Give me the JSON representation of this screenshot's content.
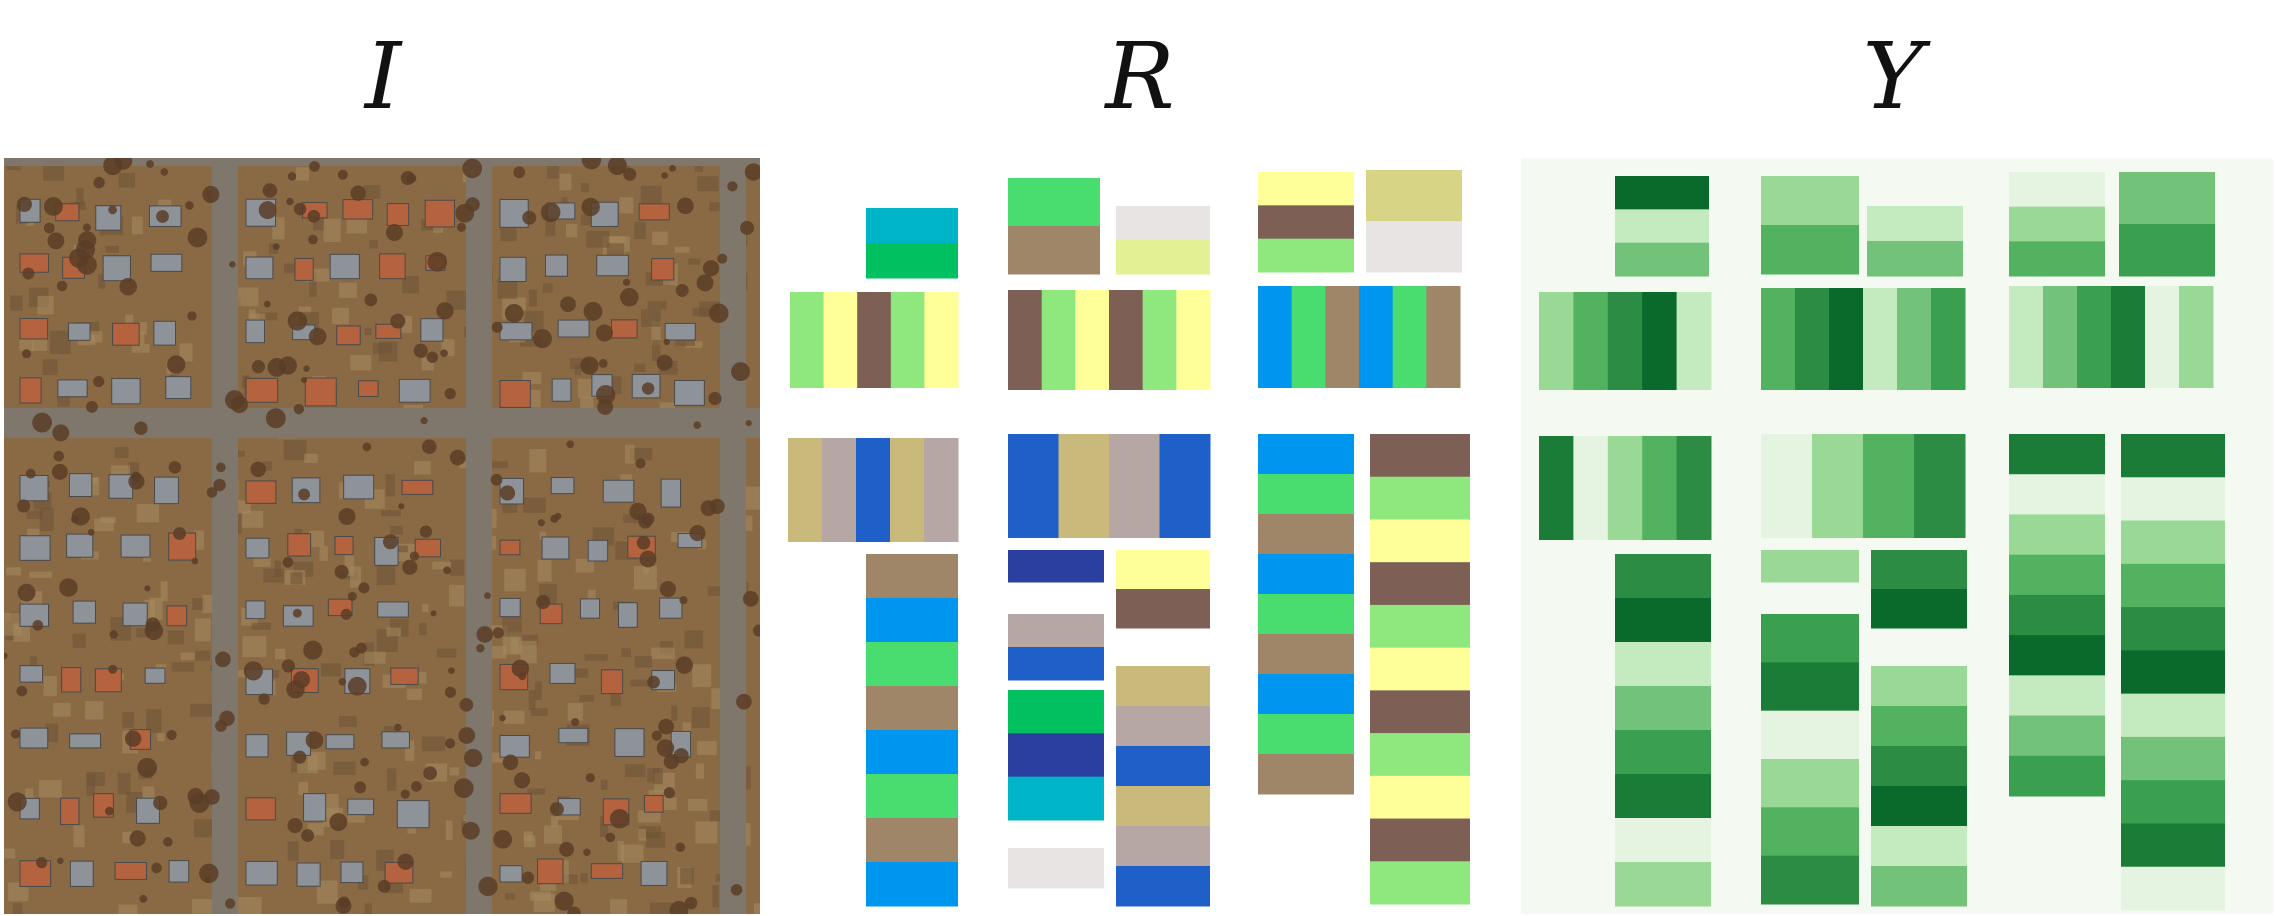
{
  "panels": [
    {
      "id": "input-image",
      "title": "I"
    },
    {
      "id": "parcel-segmentation",
      "title": "R"
    },
    {
      "id": "greenness-map",
      "title": "Y"
    }
  ],
  "colors": {
    "aerial_ground": "#8a6a45",
    "aerial_road": "#7f776b",
    "aerial_roof": "#8e939a",
    "aerial_tree": "#5a3d27",
    "segmentation_palette": [
      "#00b4c8",
      "#c9b97a",
      "#8ee87e",
      "#d8d486",
      "#0096f0",
      "#2a3fa0",
      "#1f5fc8",
      "#7d5f55",
      "#e4f094",
      "#a08668",
      "#00c060",
      "#b7a7a4",
      "#ffff99",
      "#e8e4e4",
      "#49dc6e"
    ],
    "greenness_background": "#f4faf2",
    "greenness_palette": [
      "#0a6a2c",
      "#1a7c37",
      "#2c8c44",
      "#3aa050",
      "#52b260",
      "#72c27a",
      "#9ad896",
      "#c4eac0",
      "#e4f4e0"
    ]
  }
}
